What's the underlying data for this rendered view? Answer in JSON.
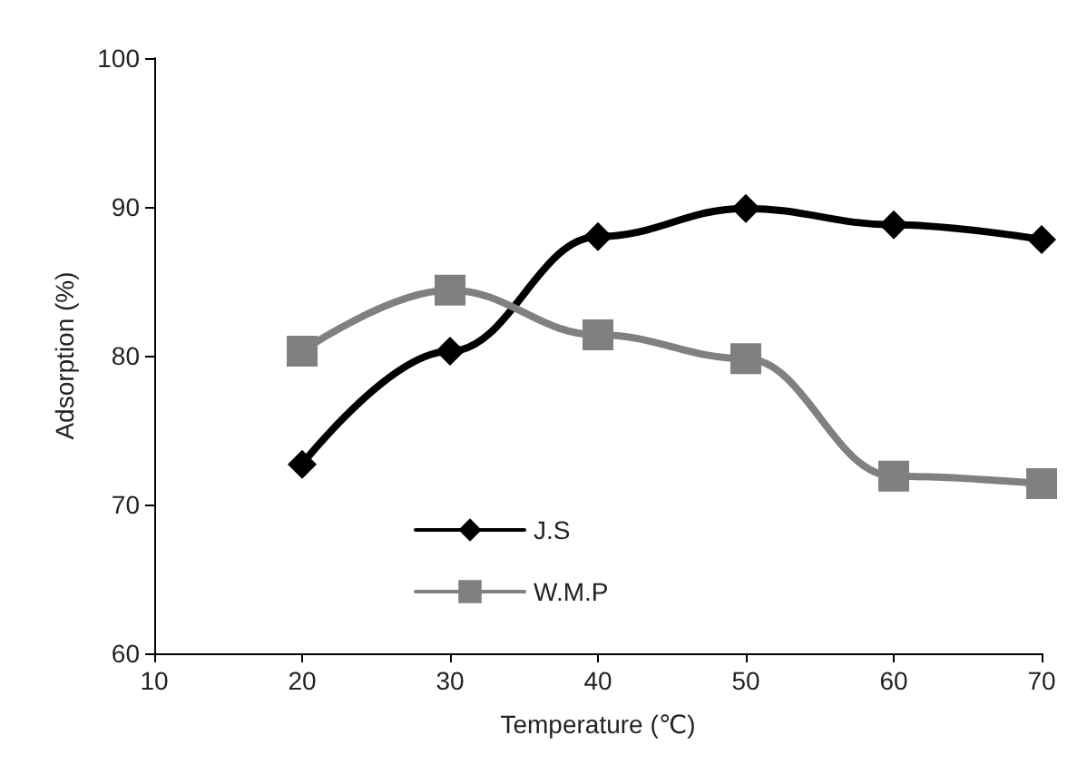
{
  "chart_data": {
    "type": "line",
    "xlabel": "Temperature (℃)",
    "ylabel": "Adsorption (%)",
    "x": [
      20,
      30,
      40,
      50,
      60,
      70
    ],
    "series": [
      {
        "name": "J.S",
        "color": "#000000",
        "marker": "diamond",
        "values": [
          72.7,
          80.3,
          88.0,
          89.9,
          88.8,
          87.8
        ]
      },
      {
        "name": "W.M.P",
        "color": "#808080",
        "marker": "square",
        "values": [
          80.3,
          84.4,
          81.4,
          79.8,
          71.9,
          71.4
        ]
      }
    ],
    "xlim": [
      10,
      70
    ],
    "xticks": [
      10,
      20,
      30,
      40,
      50,
      60,
      70
    ],
    "ylim": [
      60,
      100
    ],
    "yticks": [
      60,
      70,
      80,
      90,
      100
    ],
    "grid": false,
    "legend": "bottom left",
    "line_style": "solid"
  }
}
